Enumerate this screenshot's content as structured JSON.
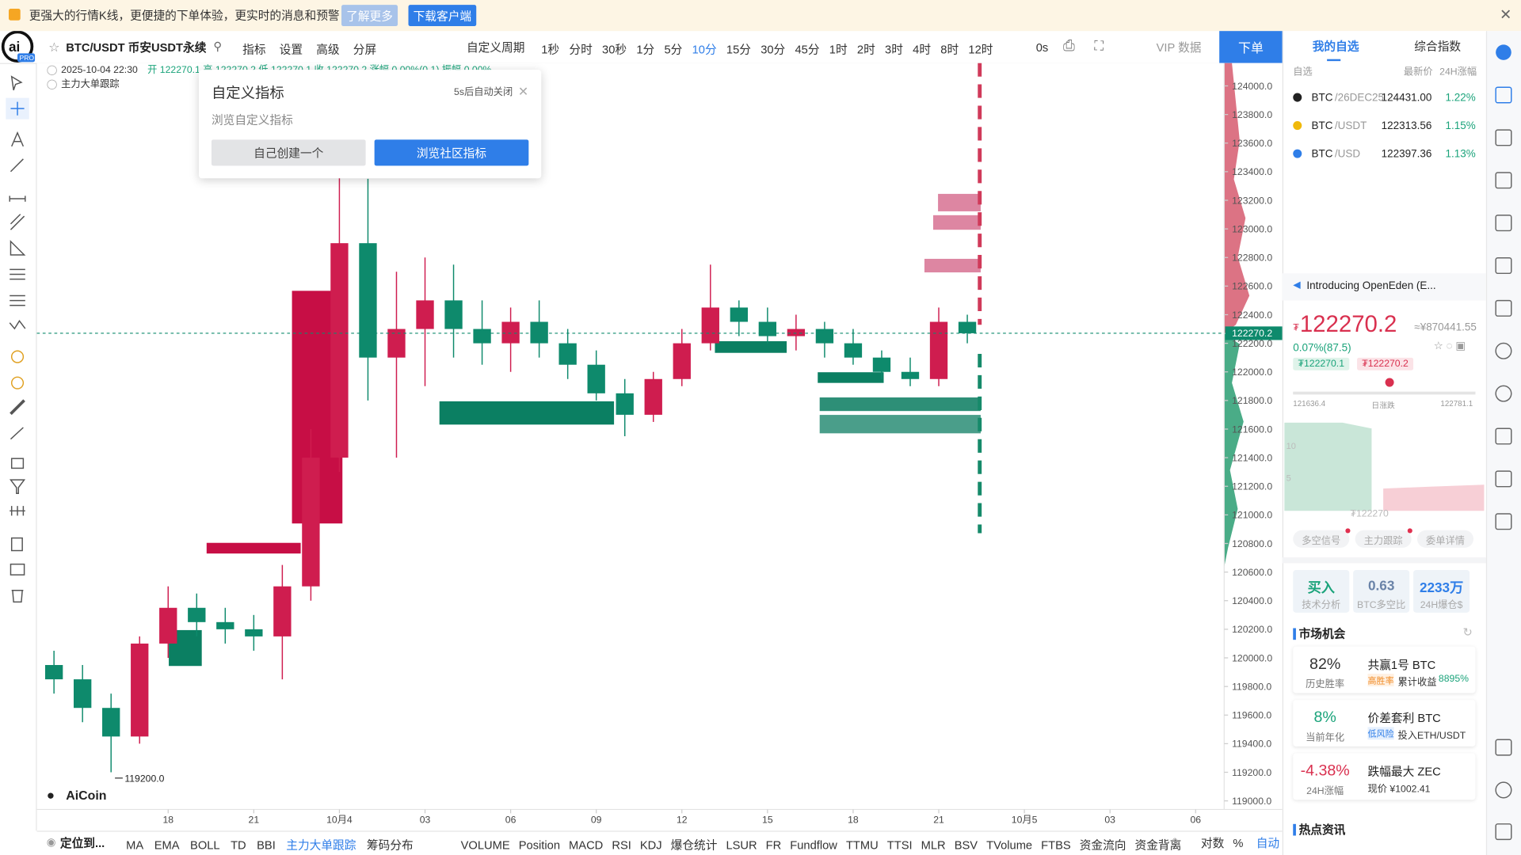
{
  "banner": {
    "text": "更强大的行情K线，更便捷的下单体验，更实时的消息和预警",
    "learn_more": "了解更多",
    "download": "下载客户端"
  },
  "toolbar": {
    "symbol": "BTC/USDT 币安USDT永续",
    "tools": [
      "指标",
      "设置",
      "高级",
      "分屏"
    ],
    "custom_period": "自定义周期",
    "periods": [
      "1秒",
      "分时",
      "30秒",
      "1分",
      "5分",
      "10分",
      "15分",
      "30分",
      "45分",
      "1时",
      "2时",
      "3时",
      "4时",
      "8时",
      "12时"
    ],
    "active_period": "10分",
    "countdown": "0s",
    "vip": "VIP 数据",
    "order": "下单"
  },
  "legend": {
    "time": "2025-10-04 22:30",
    "ohlc": "开 122270.1 高 122270.2 低 122270.1 收 122270.2 涨幅 0.00%(0.1) 振幅 0.00%",
    "indicator": "主力大单跟踪"
  },
  "popup": {
    "title": "自定义指标",
    "auto_close": "5s后自动关闭",
    "subtitle": "浏览自定义指标",
    "create": "自己创建一个",
    "browse": "浏览社区指标"
  },
  "chart_data": {
    "type": "candlestick",
    "x": [
      14,
      15,
      16,
      17,
      18,
      19,
      20,
      21,
      22,
      23,
      24,
      25,
      26,
      27,
      28,
      29,
      30,
      31,
      32,
      33,
      34,
      35,
      36,
      37,
      38,
      39,
      40,
      41,
      42,
      43,
      44,
      45,
      46
    ],
    "open": [
      119950,
      119850,
      119650,
      119450,
      120100,
      120350,
      120250,
      120200,
      120150,
      120500,
      121400,
      122900,
      122100,
      122300,
      122500,
      122300,
      122200,
      122350,
      122200,
      122050,
      121850,
      121700,
      121950,
      122200,
      122450,
      122350,
      122250,
      122300,
      122200,
      122100,
      122000,
      121950,
      122350
    ],
    "high": [
      120050,
      119950,
      119750,
      120150,
      120500,
      120450,
      120350,
      120300,
      120650,
      121600,
      123400,
      123350,
      122700,
      122800,
      122750,
      122500,
      122450,
      122500,
      122300,
      122150,
      121950,
      122000,
      122300,
      122750,
      122500,
      122450,
      122400,
      122350,
      122300,
      122150,
      122100,
      122450,
      122400
    ],
    "low": [
      119750,
      119550,
      119200,
      119400,
      120000,
      120150,
      120100,
      120050,
      119850,
      120400,
      121300,
      121800,
      121400,
      121900,
      122100,
      122050,
      122000,
      122100,
      121950,
      121800,
      121550,
      121650,
      121900,
      122150,
      122250,
      122200,
      122150,
      122100,
      122050,
      121950,
      121900,
      121900,
      122200
    ],
    "close": [
      119850,
      119650,
      119450,
      120100,
      120350,
      120250,
      120200,
      120150,
      120500,
      121400,
      122900,
      122100,
      122300,
      122500,
      122300,
      122200,
      122350,
      122200,
      122050,
      121850,
      121700,
      121950,
      122200,
      122450,
      122350,
      122250,
      122300,
      122200,
      122100,
      122000,
      121950,
      122350,
      122270.2
    ],
    "up_color": "#cf1d4f",
    "down_color": "#0e8a6c",
    "xlim": [
      13.4,
      55
    ],
    "xticks": [
      {
        "value": 18,
        "label": "18"
      },
      {
        "value": 21,
        "label": "21"
      },
      {
        "value": 24,
        "label": "10月4"
      },
      {
        "value": 27,
        "label": "03"
      },
      {
        "value": 30,
        "label": "06"
      },
      {
        "value": 33,
        "label": "09"
      },
      {
        "value": 36,
        "label": "12"
      },
      {
        "value": 39,
        "label": "15"
      },
      {
        "value": 42,
        "label": "18"
      },
      {
        "value": 45,
        "label": "21"
      },
      {
        "value": 48,
        "label": "10月5"
      },
      {
        "value": 51,
        "label": "03"
      },
      {
        "value": 54,
        "label": "06"
      }
    ],
    "ylim": [
      118940,
      124160
    ],
    "yticks": [
      {
        "value": 119000,
        "label": "119000.0"
      },
      {
        "value": 119200,
        "label": "119200.0"
      },
      {
        "value": 119400,
        "label": "119400.0"
      },
      {
        "value": 119600,
        "label": "119600.0"
      },
      {
        "value": 119800,
        "label": "119800.0"
      },
      {
        "value": 120000,
        "label": "120000.0"
      },
      {
        "value": 120200,
        "label": "120200.0"
      },
      {
        "value": 120400,
        "label": "120400.0"
      },
      {
        "value": 120600,
        "label": "120600.0"
      },
      {
        "value": 120800,
        "label": "120800.0"
      },
      {
        "value": 121000,
        "label": "121000.0"
      },
      {
        "value": 121200,
        "label": "121200.0"
      },
      {
        "value": 121400,
        "label": "121400.0"
      },
      {
        "value": 121600,
        "label": "121600.0"
      },
      {
        "value": 121800,
        "label": "121800.0"
      },
      {
        "value": 122000,
        "label": "122000.0"
      },
      {
        "value": 122200,
        "label": "122200.0"
      },
      {
        "value": 122400,
        "label": "122400.0"
      },
      {
        "value": 122600,
        "label": "122600.0"
      },
      {
        "value": 122800,
        "label": "122800.0"
      },
      {
        "value": 123000,
        "label": "123000.0"
      },
      {
        "value": 123200,
        "label": "123200.0"
      },
      {
        "value": 123400,
        "label": "123400.0"
      },
      {
        "value": 123600,
        "label": "123600.0"
      },
      {
        "value": 123800,
        "label": "123800.0"
      },
      {
        "value": 124000,
        "label": "124000.0"
      }
    ],
    "last_price": 122270.2,
    "low_marker": {
      "value": 119200,
      "label": "119200.0"
    },
    "watermark": "AiCoin"
  },
  "bottom_bar": {
    "locate": "定位到...",
    "main_indicators": [
      "MA",
      "EMA",
      "BOLL",
      "TD",
      "BBI",
      "主力大单跟踪",
      "筹码分布"
    ],
    "active_indicator": "主力大单跟踪",
    "sub_indicators": [
      "VOLUME",
      "Position",
      "MACD",
      "RSI",
      "KDJ",
      "爆仓统计",
      "LSUR",
      "FR",
      "Fundflow",
      "TTMU",
      "TTSI",
      "MLR",
      "BSV",
      "TVolume",
      "FTBS",
      "资金流向",
      "资金背离"
    ],
    "log": "对数",
    "percent": "%",
    "auto": "自动"
  },
  "watchlist": {
    "tabs": [
      "我的自选",
      "综合指数"
    ],
    "headers": [
      "自选",
      "最新价",
      "24H涨幅"
    ],
    "rows": [
      {
        "name": "BTC",
        "market": "/26DEC25",
        "price": "124431.00",
        "change": "1.22%"
      },
      {
        "name": "BTC",
        "market": "/USDT",
        "price": "122313.56",
        "change": "1.15%"
      },
      {
        "name": "BTC",
        "market": "/USD",
        "price": "122397.36",
        "change": "1.13%"
      }
    ]
  },
  "ticker": {
    "news": "Introducing OpenEden (E...",
    "currency": "₮",
    "price": "122270.2",
    "cny": "≈¥870441.55",
    "change": "0.07%(87.5)",
    "bid": "₮122270.1",
    "ask": "₮122270.2",
    "day_low": "121636.4",
    "range_label": "日涨跌",
    "day_high": "122781.1",
    "depth_labels": [
      "10",
      "5"
    ],
    "depth_price": "₮122270",
    "buttons": [
      "多空信号",
      "主力跟踪",
      "委单详情"
    ]
  },
  "stats": [
    {
      "value": "买入",
      "label": "技术分析"
    },
    {
      "value": "0.63",
      "label": "BTC多空比"
    },
    {
      "value": "2233万",
      "label": "24H爆仓$"
    }
  ],
  "opportunities": {
    "title": "市场机会",
    "cards": [
      {
        "value": "82%",
        "label": "历史胜率",
        "name": "共赢1号 BTC",
        "tag": "高胜率",
        "desc": "累计收益",
        "extra": "8895%"
      },
      {
        "value": "8%",
        "label": "当前年化",
        "name": "价差套利 BTC",
        "tag": "低风险",
        "desc": "投入ETH/USDT",
        "extra": ""
      },
      {
        "value": "-4.38%",
        "label": "24H涨幅",
        "name": "跌幅最大 ZEC",
        "tag": "",
        "desc": "现价 ¥1002.41",
        "extra": ""
      }
    ]
  },
  "news_title": "热点资讯"
}
